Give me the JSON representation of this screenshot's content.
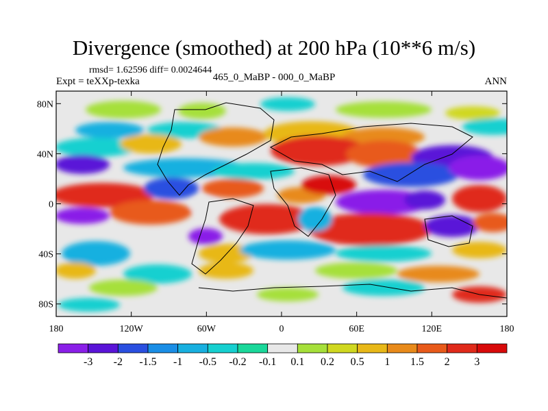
{
  "title": "Divergence (smoothed) at 200 hPa (10**6 m/s)",
  "stats": "rmsd= 1.62596 diff= 0.0024644",
  "experiment": "Expt = teXXp-texka",
  "comparison": "465_0_MaBP - 000_0_MaBP",
  "season": "ANN",
  "chart_data": {
    "type": "heatmap",
    "title": "Divergence (smoothed) at 200 hPa (10**6 m/s)",
    "x_axis": {
      "range": [
        -180,
        180
      ],
      "ticks": [
        -180,
        -120,
        -60,
        0,
        60,
        120,
        180
      ],
      "tick_labels": [
        "180",
        "120W",
        "60W",
        "0",
        "60E",
        "120E",
        "180"
      ]
    },
    "y_axis": {
      "range": [
        -90,
        90
      ],
      "ticks": [
        80,
        40,
        0,
        -40,
        -80
      ],
      "tick_labels": [
        "80N",
        "40N",
        "0",
        "40S",
        "80S"
      ]
    },
    "colorbar": {
      "labels": [
        "-3",
        "-2",
        "-1.5",
        "-1",
        "-0.5",
        "-0.2",
        "-0.1",
        "0.1",
        "0.2",
        "0.5",
        "1",
        "1.5",
        "2",
        "3"
      ],
      "colors": [
        "#8a1fe8",
        "#5a14d8",
        "#2a4fe0",
        "#1a8ee6",
        "#18b0e0",
        "#16d0d0",
        "#1ad89a",
        "#e8e8e8",
        "#a6e03a",
        "#d0d820",
        "#e8b818",
        "#e88a1a",
        "#e85a1a",
        "#e02a1a",
        "#d80a0a"
      ]
    }
  }
}
